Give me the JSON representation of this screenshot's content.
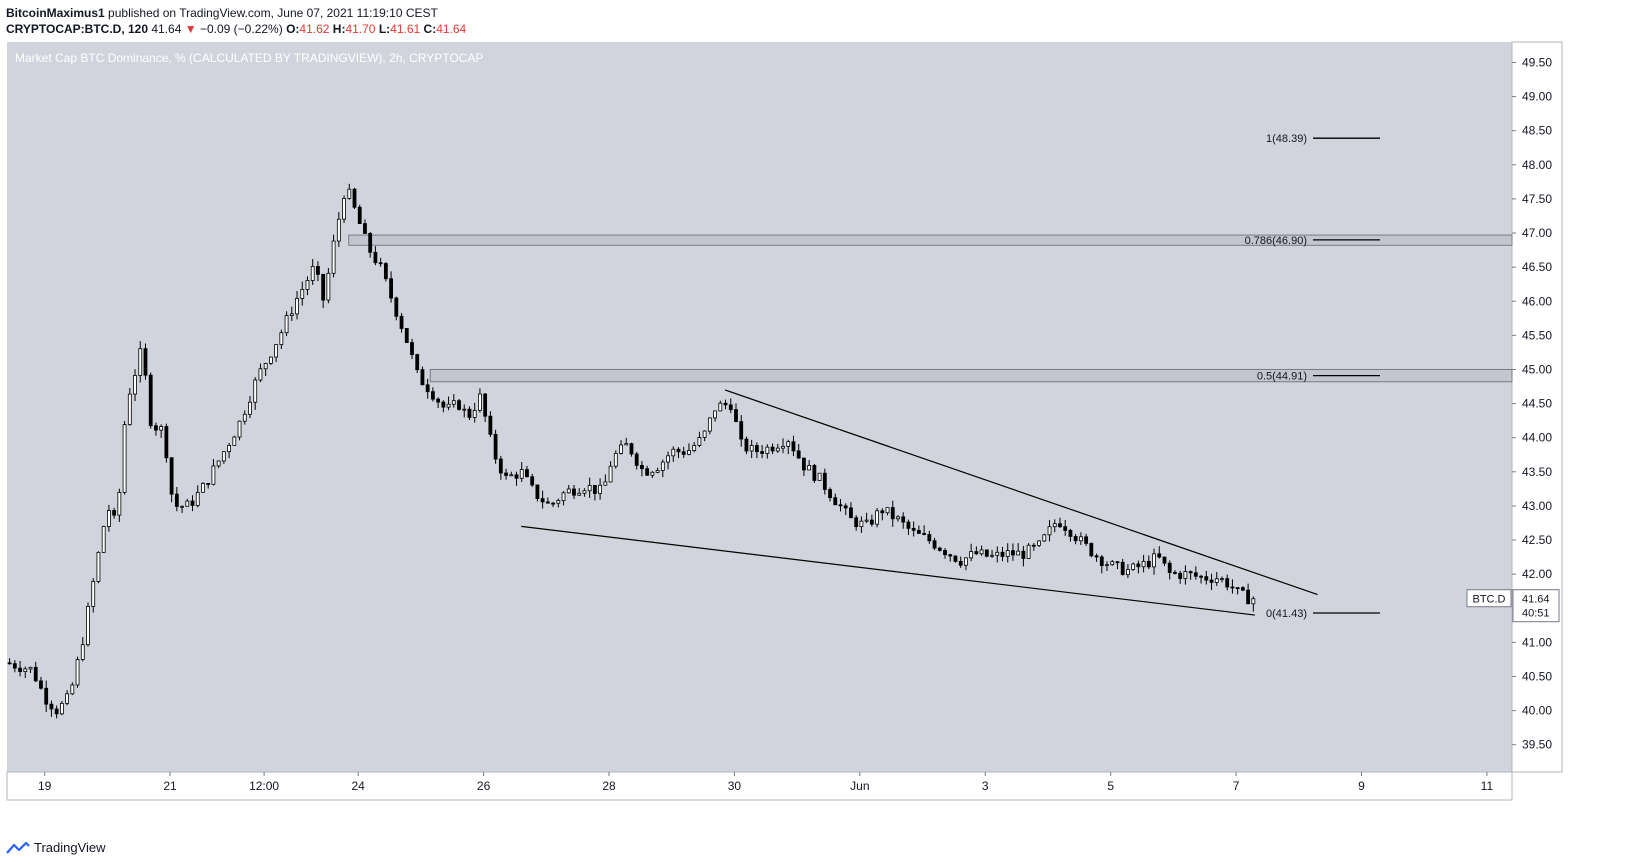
{
  "header": {
    "publisher": "BitcoinMaximus1",
    "published_text": "published on TradingView.com, June 07, 2021 11:19:10 CEST",
    "symbol": "CRYPTOCAP:BTC.D, 120",
    "last": "41.64",
    "change_arrow": "▼",
    "change": "−0.09 (−0.22%)",
    "o_label": "O:",
    "o_value": "41.62",
    "h_label": "H:",
    "h_value": "41.70",
    "l_label": "L:",
    "l_value": "41.61",
    "c_label": "C:",
    "c_value": "41.64"
  },
  "footer": {
    "brand": "TradingView",
    "logo_icon": "tradingview-logo-icon"
  },
  "chart_data": {
    "type": "candlestick",
    "title": "Market Cap BTC Dominance, % (CALCULATED BY TRADINGVIEW), 2h, CRYPTOCAP",
    "ylim": [
      39.1,
      49.8
    ],
    "y_ticks": [
      "39.50",
      "40.00",
      "40.50",
      "41.00",
      "41.50",
      "42.00",
      "42.50",
      "43.00",
      "43.50",
      "44.00",
      "44.50",
      "45.00",
      "45.50",
      "46.00",
      "46.50",
      "47.00",
      "47.50",
      "48.00",
      "48.50",
      "49.00",
      "49.50"
    ],
    "x_ticks": [
      {
        "label": "19",
        "t": 19
      },
      {
        "label": "21",
        "t": 21
      },
      {
        "label": "12:00",
        "t": 22.5
      },
      {
        "label": "24",
        "t": 24
      },
      {
        "label": "26",
        "t": 26
      },
      {
        "label": "28",
        "t": 28
      },
      {
        "label": "30",
        "t": 30
      },
      {
        "label": "Jun",
        "t": 32
      },
      {
        "label": "3",
        "t": 34
      },
      {
        "label": "5",
        "t": 36
      },
      {
        "label": "7",
        "t": 38
      },
      {
        "label": "9",
        "t": 40
      },
      {
        "label": "11",
        "t": 42
      }
    ],
    "xlim": [
      18.4,
      42.4
    ],
    "price_anchors": [
      [
        18.4,
        40.7
      ],
      [
        18.8,
        40.6
      ],
      [
        19.0,
        40.2
      ],
      [
        19.2,
        40.0
      ],
      [
        19.4,
        40.2
      ],
      [
        19.6,
        41.0
      ],
      [
        19.8,
        42.0
      ],
      [
        20.0,
        43.0
      ],
      [
        20.15,
        42.7
      ],
      [
        20.3,
        44.5
      ],
      [
        20.55,
        45.3
      ],
      [
        20.7,
        44.2
      ],
      [
        20.9,
        44.1
      ],
      [
        21.05,
        43.0
      ],
      [
        21.3,
        43.0
      ],
      [
        21.55,
        43.3
      ],
      [
        21.8,
        43.7
      ],
      [
        22.1,
        44.2
      ],
      [
        22.4,
        44.9
      ],
      [
        22.75,
        45.5
      ],
      [
        23.0,
        46.0
      ],
      [
        23.3,
        46.5
      ],
      [
        23.45,
        46.0
      ],
      [
        23.6,
        46.8
      ],
      [
        23.8,
        47.7
      ],
      [
        24.0,
        47.2
      ],
      [
        24.15,
        46.8
      ],
      [
        24.35,
        46.5
      ],
      [
        24.55,
        46.0
      ],
      [
        24.75,
        45.5
      ],
      [
        24.95,
        44.9
      ],
      [
        25.15,
        44.7
      ],
      [
        25.4,
        44.4
      ],
      [
        25.6,
        44.5
      ],
      [
        25.75,
        44.3
      ],
      [
        25.95,
        44.6
      ],
      [
        26.15,
        43.8
      ],
      [
        26.35,
        43.4
      ],
      [
        26.6,
        43.5
      ],
      [
        26.8,
        43.2
      ],
      [
        27.05,
        43.0
      ],
      [
        27.3,
        43.2
      ],
      [
        27.6,
        43.3
      ],
      [
        27.9,
        43.2
      ],
      [
        28.05,
        43.7
      ],
      [
        28.3,
        43.9
      ],
      [
        28.55,
        43.5
      ],
      [
        28.8,
        43.6
      ],
      [
        29.0,
        43.8
      ],
      [
        29.25,
        43.8
      ],
      [
        29.5,
        44.0
      ],
      [
        29.7,
        44.45
      ],
      [
        29.95,
        44.5
      ],
      [
        30.1,
        43.9
      ],
      [
        30.3,
        43.8
      ],
      [
        30.55,
        43.85
      ],
      [
        30.85,
        44.0
      ],
      [
        31.1,
        43.6
      ],
      [
        31.35,
        43.4
      ],
      [
        31.6,
        43.1
      ],
      [
        31.85,
        42.8
      ],
      [
        32.1,
        42.7
      ],
      [
        32.35,
        42.95
      ],
      [
        32.6,
        42.8
      ],
      [
        32.85,
        42.6
      ],
      [
        33.1,
        42.5
      ],
      [
        33.35,
        42.35
      ],
      [
        33.6,
        42.2
      ],
      [
        33.85,
        42.3
      ],
      [
        34.1,
        42.25
      ],
      [
        34.35,
        42.3
      ],
      [
        34.6,
        42.3
      ],
      [
        34.85,
        42.4
      ],
      [
        35.0,
        42.6
      ],
      [
        35.15,
        42.8
      ],
      [
        35.35,
        42.65
      ],
      [
        35.55,
        42.45
      ],
      [
        35.8,
        42.25
      ],
      [
        36.05,
        42.1
      ],
      [
        36.3,
        42.05
      ],
      [
        36.55,
        42.15
      ],
      [
        36.75,
        42.25
      ],
      [
        36.95,
        42.0
      ],
      [
        37.2,
        42.0
      ],
      [
        37.45,
        41.95
      ],
      [
        37.7,
        41.95
      ],
      [
        37.9,
        41.85
      ],
      [
        38.05,
        41.7
      ],
      [
        38.2,
        41.65
      ],
      [
        38.35,
        41.64
      ]
    ],
    "trendlines": [
      {
        "name": "upper",
        "from": [
          29.85,
          44.7
        ],
        "to": [
          39.3,
          41.7
        ]
      },
      {
        "name": "lower",
        "from": [
          26.6,
          42.7
        ],
        "to": [
          38.3,
          41.4
        ]
      }
    ],
    "fib_levels": [
      {
        "label": "1(48.39)",
        "value": 48.39
      },
      {
        "label": "0.786(46.90)",
        "value": 46.9
      },
      {
        "label": "0.5(44.91)",
        "value": 44.91
      },
      {
        "label": "0(41.43)",
        "value": 41.43
      }
    ],
    "zones": [
      {
        "name": "zone-0786",
        "from_t": 23.85,
        "low": 46.82,
        "high": 46.97
      },
      {
        "name": "zone-05",
        "from_t": 25.15,
        "low": 44.82,
        "high": 45.0
      }
    ],
    "last_price_label": "41.64",
    "symbol_label": "BTC.D",
    "countdown_label": "40:51",
    "colors": {
      "background": "#d1d4dc",
      "candle": "#000000",
      "axis_text": "#131722",
      "zone_fill": "#c3c6d0",
      "zone_stroke": "#787b86"
    }
  }
}
